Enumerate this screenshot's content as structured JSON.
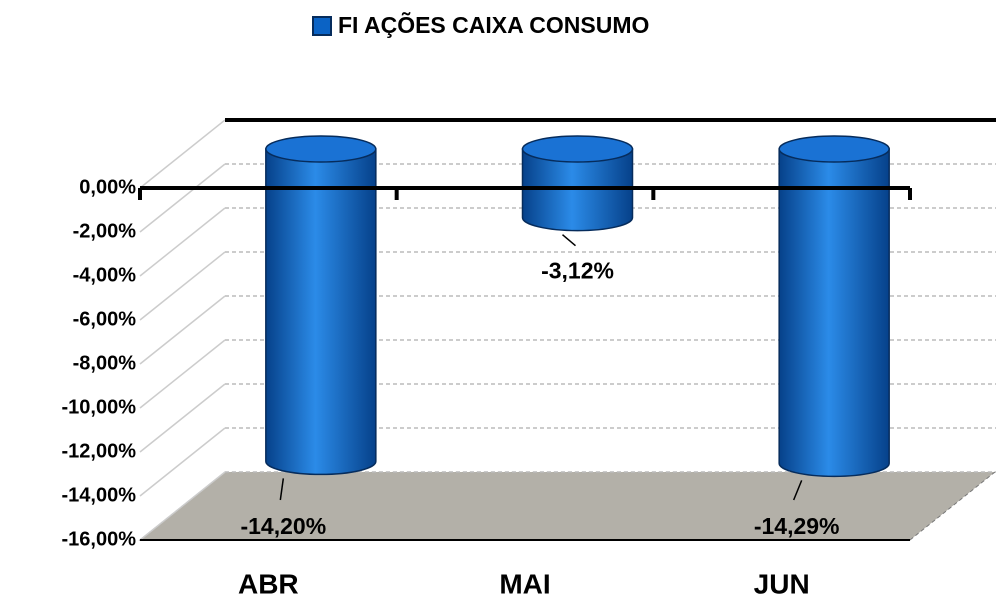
{
  "chart_data": {
    "type": "bar",
    "categories": [
      "ABR",
      "MAI",
      "JUN"
    ],
    "series": [
      {
        "name": "FI AÇÕES CAIXA CONSUMO",
        "color": "#0b63c5",
        "values": [
          -14.2,
          -3.12,
          -14.29
        ],
        "value_labels": [
          "-14,20%",
          "-3,12%",
          "-14,29%"
        ]
      }
    ],
    "ylim": [
      -16,
      0
    ],
    "yticks": [
      {
        "value": 0,
        "label": "0,00%"
      },
      {
        "value": -2,
        "label": "-2,00%"
      },
      {
        "value": -4,
        "label": "-4,00%"
      },
      {
        "value": -6,
        "label": "-6,00%"
      },
      {
        "value": -8,
        "label": "-8,00%"
      },
      {
        "value": -10,
        "label": "-10,00%"
      },
      {
        "value": -12,
        "label": "-12,00%"
      },
      {
        "value": -14,
        "label": "-14,00%"
      },
      {
        "value": -16,
        "label": "-16,00%"
      }
    ],
    "grid": true
  }
}
